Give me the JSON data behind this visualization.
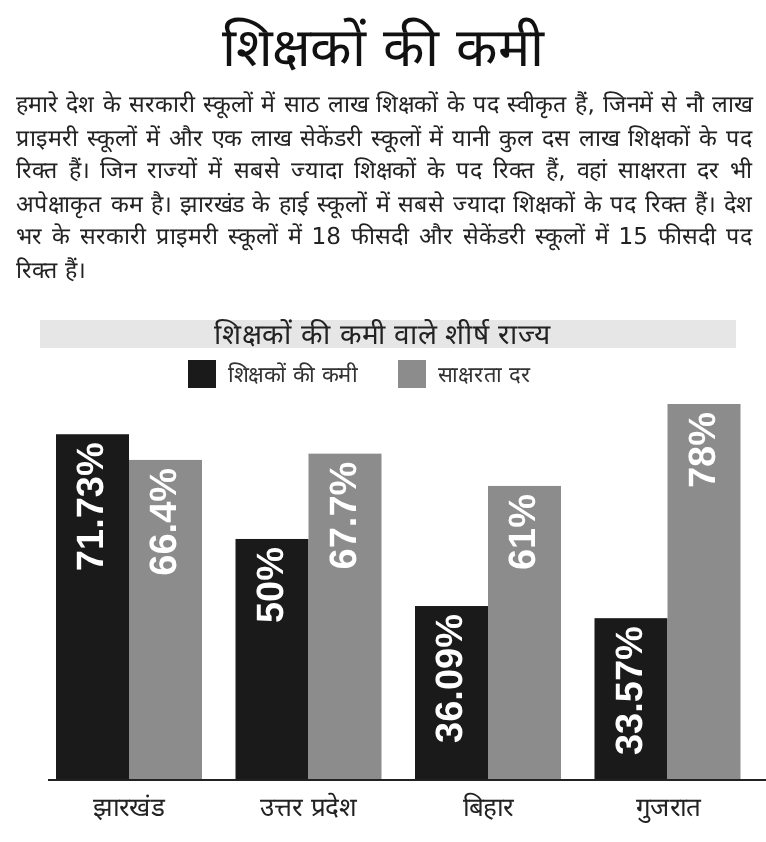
{
  "chart_data": {
    "type": "bar",
    "title": "शिक्षकों की कमी",
    "subtitle": "शिक्षकों की कमी वाले शीर्ष राज्य",
    "annotations": [
      "हमारे देश के सरकारी स्कूलों में साठ लाख शिक्षकों के पद स्वीकृत हैं, जिनमें से नौ लाख प्राइमरी स्कूलों में और एक लाख सेकेंडरी स्कूलों में यानी कुल दस लाख शिक्षकों के पद रिक्त हैं। जिन राज्यों में सबसे ज्यादा शिक्षकों के पद रिक्त हैं, वहां साक्षरता दर भी अपेक्षाकृत कम है। झारखंड के हाई स्कूलों में सबसे ज्यादा शिक्षकों के पद रिक्त हैं। देश भर के सरकारी प्राइमरी स्कूलों में 18 फीसदी और सेकेंडरी स्कूलों में 15 फीसदी पद रिक्त हैं।"
    ],
    "categories": [
      "झारखंड",
      "उत्तर प्रदेश",
      "बिहार",
      "गुजरात"
    ],
    "series": [
      {
        "name": "शिक्षकों की कमी",
        "color": "#1a1a1a",
        "values": [
          71.73,
          50,
          36.09,
          33.57
        ],
        "value_labels": [
          "71.73%",
          "50%",
          "36.09%",
          "33.57%"
        ]
      },
      {
        "name": "साक्षरता दर",
        "color": "#8c8c8c",
        "values": [
          66.4,
          67.7,
          61,
          78
        ],
        "value_labels": [
          "66.4%",
          "67.7%",
          "61%",
          "78%"
        ]
      }
    ],
    "legend": "top"
  }
}
